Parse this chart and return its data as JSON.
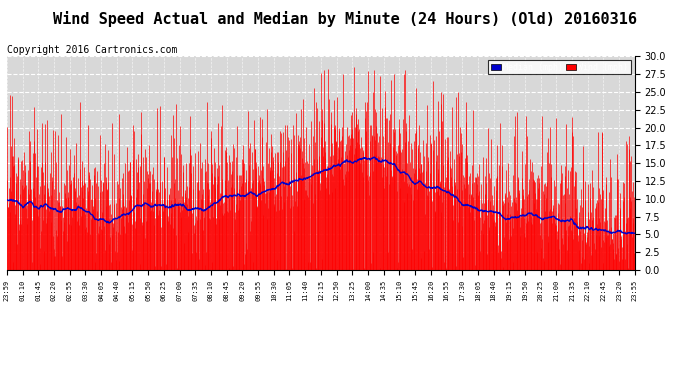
{
  "title": "Wind Speed Actual and Median by Minute (24 Hours) (Old) 20160316",
  "copyright": "Copyright 2016 Cartronics.com",
  "ylim": [
    0.0,
    30.0
  ],
  "yticks": [
    0.0,
    2.5,
    5.0,
    7.5,
    10.0,
    12.5,
    15.0,
    17.5,
    20.0,
    22.5,
    25.0,
    27.5,
    30.0
  ],
  "bg_color": "#d8d8d8",
  "wind_color": "#ff0000",
  "median_color": "#0000cc",
  "legend_median_bg": "#0000cc",
  "legend_wind_bg": "#ff0000",
  "title_fontsize": 11,
  "copyright_fontsize": 7,
  "n_minutes": 1440,
  "seed": 12345,
  "tick_labels": [
    "23:59",
    "01:10",
    "01:45",
    "02:20",
    "02:55",
    "03:30",
    "04:05",
    "04:40",
    "05:15",
    "05:50",
    "06:25",
    "07:00",
    "07:35",
    "08:10",
    "08:45",
    "09:20",
    "09:55",
    "10:30",
    "11:05",
    "11:40",
    "12:15",
    "12:50",
    "13:25",
    "14:00",
    "14:35",
    "15:10",
    "15:45",
    "16:20",
    "16:55",
    "17:30",
    "18:05",
    "18:40",
    "19:15",
    "19:50",
    "20:25",
    "21:00",
    "21:35",
    "22:10",
    "22:45",
    "23:20",
    "23:55"
  ]
}
